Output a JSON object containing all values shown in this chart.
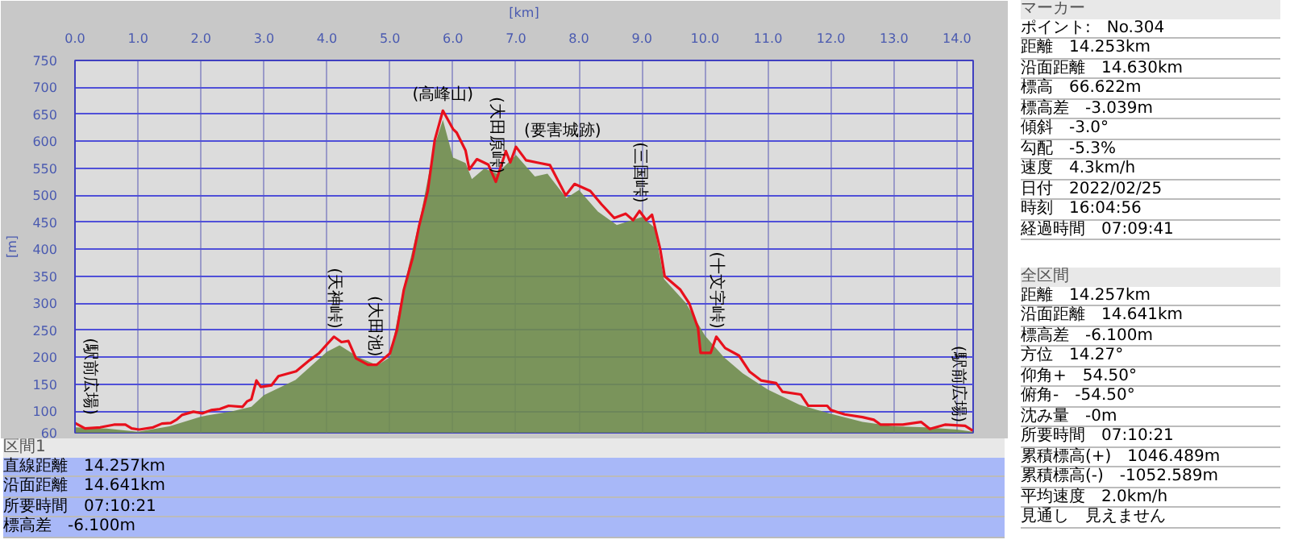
{
  "chart_data": [
    {
      "type": "area",
      "xlabel": "[km]",
      "ylabel": "[m]",
      "xlim": [
        0,
        14.257
      ],
      "ylim": [
        60,
        750
      ],
      "xticks": [
        {
          "value": 0,
          "label": "0.0"
        },
        {
          "value": 1,
          "label": "1.0"
        },
        {
          "value": 2,
          "label": "2.0"
        },
        {
          "value": 3,
          "label": "3.0"
        },
        {
          "value": 4,
          "label": "4.0"
        },
        {
          "value": 5,
          "label": "5.0"
        },
        {
          "value": 6,
          "label": "6.0"
        },
        {
          "value": 7,
          "label": "7.0"
        },
        {
          "value": 8,
          "label": "8.0"
        },
        {
          "value": 9,
          "label": "9.0"
        },
        {
          "value": 10,
          "label": "10.0"
        },
        {
          "value": 11,
          "label": "11.0"
        },
        {
          "value": 12,
          "label": "12.0"
        },
        {
          "value": 13,
          "label": "13.0"
        },
        {
          "value": 14,
          "label": "14.0"
        }
      ],
      "yticks": [
        60,
        100,
        150,
        200,
        250,
        300,
        350,
        400,
        450,
        500,
        550,
        600,
        650,
        700,
        750
      ],
      "grid": true,
      "series": [
        {
          "type": "area",
          "color": "#6f8c4c",
          "x": [
            0,
            0.5,
            1.0,
            1.5,
            2.0,
            2.5,
            2.8,
            3.0,
            3.5,
            4.0,
            4.2,
            4.5,
            4.8,
            5.0,
            5.2,
            5.5,
            5.7,
            5.84,
            6.0,
            6.2,
            6.3,
            6.5,
            6.7,
            7.0,
            7.3,
            7.5,
            7.8,
            8.0,
            8.3,
            8.6,
            9.0,
            9.2,
            9.35,
            9.7,
            10.0,
            10.3,
            10.6,
            11.0,
            11.5,
            12.0,
            12.5,
            13.0,
            13.5,
            14.0,
            14.25
          ],
          "values": [
            70,
            68,
            62,
            72,
            90,
            100,
            108,
            130,
            158,
            210,
            222,
            200,
            185,
            200,
            320,
            470,
            590,
            640,
            570,
            560,
            530,
            550,
            540,
            575,
            535,
            540,
            495,
            510,
            470,
            445,
            460,
            440,
            345,
            300,
            240,
            200,
            170,
            140,
            112,
            95,
            80,
            72,
            70,
            66,
            62
          ]
        },
        {
          "type": "line",
          "color": "#e8101c",
          "x": [
            0,
            0.16,
            0.4,
            0.62,
            0.8,
            0.9,
            1.02,
            1.24,
            1.38,
            1.52,
            1.62,
            1.7,
            1.88,
            2.02,
            2.16,
            2.3,
            2.44,
            2.66,
            2.73,
            2.8,
            2.88,
            2.95,
            3.12,
            3.23,
            3.51,
            3.73,
            3.87,
            4.0,
            4.11,
            4.23,
            4.34,
            4.46,
            4.65,
            4.79,
            4.93,
            5.0,
            5.11,
            5.22,
            5.36,
            5.46,
            5.6,
            5.71,
            5.84,
            6.0,
            6.06,
            6.2,
            6.26,
            6.38,
            6.56,
            6.68,
            6.84,
            6.91,
            7.0,
            7.16,
            7.37,
            7.54,
            7.79,
            7.93,
            8.18,
            8.36,
            8.56,
            8.74,
            8.86,
            8.96,
            9.07,
            9.16,
            9.29,
            9.36,
            9.61,
            9.75,
            9.89,
            9.93,
            10.09,
            10.18,
            10.32,
            10.54,
            10.71,
            10.89,
            11.13,
            11.23,
            11.52,
            11.64,
            11.94,
            12.0,
            12.22,
            12.5,
            12.68,
            12.79,
            13.14,
            13.43,
            13.57,
            13.81,
            14.13,
            14.25
          ],
          "values": [
            78,
            68,
            70,
            75,
            75,
            68,
            66,
            70,
            77,
            78,
            85,
            93,
            99,
            96,
            102,
            104,
            110,
            108,
            118,
            122,
            157,
            145,
            148,
            165,
            174,
            195,
            207,
            224,
            238,
            228,
            230,
            198,
            186,
            186,
            200,
            207,
            250,
            325,
            384,
            442,
            508,
            602,
            657,
            623,
            616,
            583,
            548,
            567,
            557,
            525,
            582,
            561,
            590,
            565,
            560,
            556,
            500,
            521,
            508,
            483,
            458,
            466,
            454,
            471,
            454,
            464,
            400,
            350,
            325,
            300,
            254,
            208,
            208,
            238,
            217,
            203,
            173,
            157,
            152,
            136,
            131,
            110,
            110,
            102,
            94,
            89,
            84,
            75,
            75,
            80,
            67,
            75,
            73,
            64
          ]
        }
      ],
      "annotations": [
        {
          "text": "(駅前広場)",
          "x": 0,
          "y": 78
        },
        {
          "text": "(天神峠)",
          "x": 4.11,
          "y": 238
        },
        {
          "text": "(大田池)",
          "x": 4.75,
          "y": 186
        },
        {
          "text": "(高峰山)",
          "x": 5.84,
          "y": 657
        },
        {
          "text": "(大田原峠)",
          "x": 6.68,
          "y": 525
        },
        {
          "text": "(要害城跡)",
          "x": 7.0,
          "y": 590
        },
        {
          "text": "(三国峠)",
          "x": 8.96,
          "y": 471
        },
        {
          "text": "(十文字峠)",
          "x": 10.18,
          "y": 238
        },
        {
          "text": "(駅前広場)",
          "x": 14.25,
          "y": 64
        }
      ]
    },
    {
      "type": "other",
      "title": "マーカー",
      "annotations": [
        "ポイント:　No.304",
        "距離　14.253km",
        "沿面距離　14.630km",
        "標高　66.622m",
        "標高差　-3.039m",
        "傾斜　-3.0°",
        "勾配　-5.3%",
        "速度　4.3km/h",
        "日付　2022/02/25",
        "時刻　16:04:56",
        "経過時間　07:09:41"
      ]
    },
    {
      "type": "other",
      "title": "全区間",
      "annotations": [
        "距離　14.257km",
        "沿面距離　14.641km",
        "標高差　-6.100m",
        "方位　14.27°",
        "仰角+　54.50°",
        "俯角-　-54.50°",
        "沈み量　-0m",
        "所要時間　07:10:21",
        "累積標高(+)　1046.489m",
        "累積標高(-)　-1052.589m",
        "平均速度　2.0km/h",
        "見通し　見えません"
      ]
    },
    {
      "type": "other",
      "title": "区間1",
      "annotations": [
        "直線距離　14.257km",
        "沿面距離　14.641km",
        "所要時間　07:10:21",
        "標高差　-6.100m"
      ]
    }
  ]
}
